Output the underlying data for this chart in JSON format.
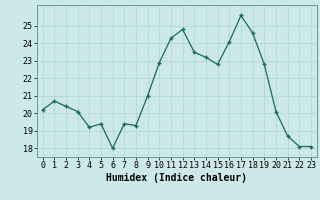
{
  "x": [
    0,
    1,
    2,
    3,
    4,
    5,
    6,
    7,
    8,
    9,
    10,
    11,
    12,
    13,
    14,
    15,
    16,
    17,
    18,
    19,
    20,
    21,
    22,
    23
  ],
  "y": [
    20.2,
    20.7,
    20.4,
    20.1,
    19.2,
    19.4,
    18.0,
    19.4,
    19.3,
    21.0,
    22.9,
    24.3,
    24.8,
    23.5,
    23.2,
    22.8,
    24.1,
    25.6,
    24.6,
    22.8,
    20.1,
    18.7,
    18.1,
    18.1
  ],
  "line_color": "#1a6b5a",
  "bg_color": "#cce8e8",
  "grid_color": "#aed4d4",
  "xlabel": "Humidex (Indice chaleur)",
  "ylim": [
    17.5,
    26.2
  ],
  "xlim": [
    -0.5,
    23.5
  ],
  "yticks": [
    18,
    19,
    20,
    21,
    22,
    23,
    24,
    25
  ],
  "xticks": [
    0,
    1,
    2,
    3,
    4,
    5,
    6,
    7,
    8,
    9,
    10,
    11,
    12,
    13,
    14,
    15,
    16,
    17,
    18,
    19,
    20,
    21,
    22,
    23
  ],
  "tick_fontsize": 6.0,
  "label_fontsize": 7.0
}
